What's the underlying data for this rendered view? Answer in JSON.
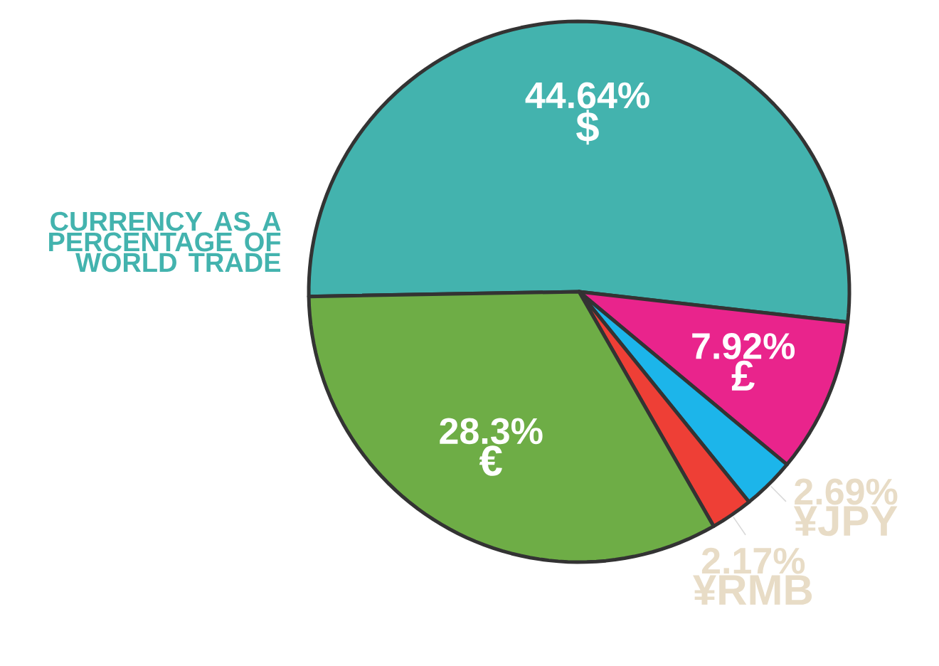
{
  "chart_data": {
    "type": "pie",
    "title": "CURRENCY AS A PERCENTAGE OF WORLD TRADE",
    "categories": [
      "$",
      "£",
      "¥JPY",
      "¥RMB",
      "€"
    ],
    "values": [
      44.64,
      7.92,
      2.69,
      2.17,
      28.3
    ],
    "value_labels": [
      "44.64%",
      "7.92%",
      "2.69%",
      "2.17%",
      "28.3%"
    ],
    "colors": [
      "#43b3ae",
      "#e9248c",
      "#1cb5ea",
      "#ee3f36",
      "#6ead46"
    ]
  }
}
